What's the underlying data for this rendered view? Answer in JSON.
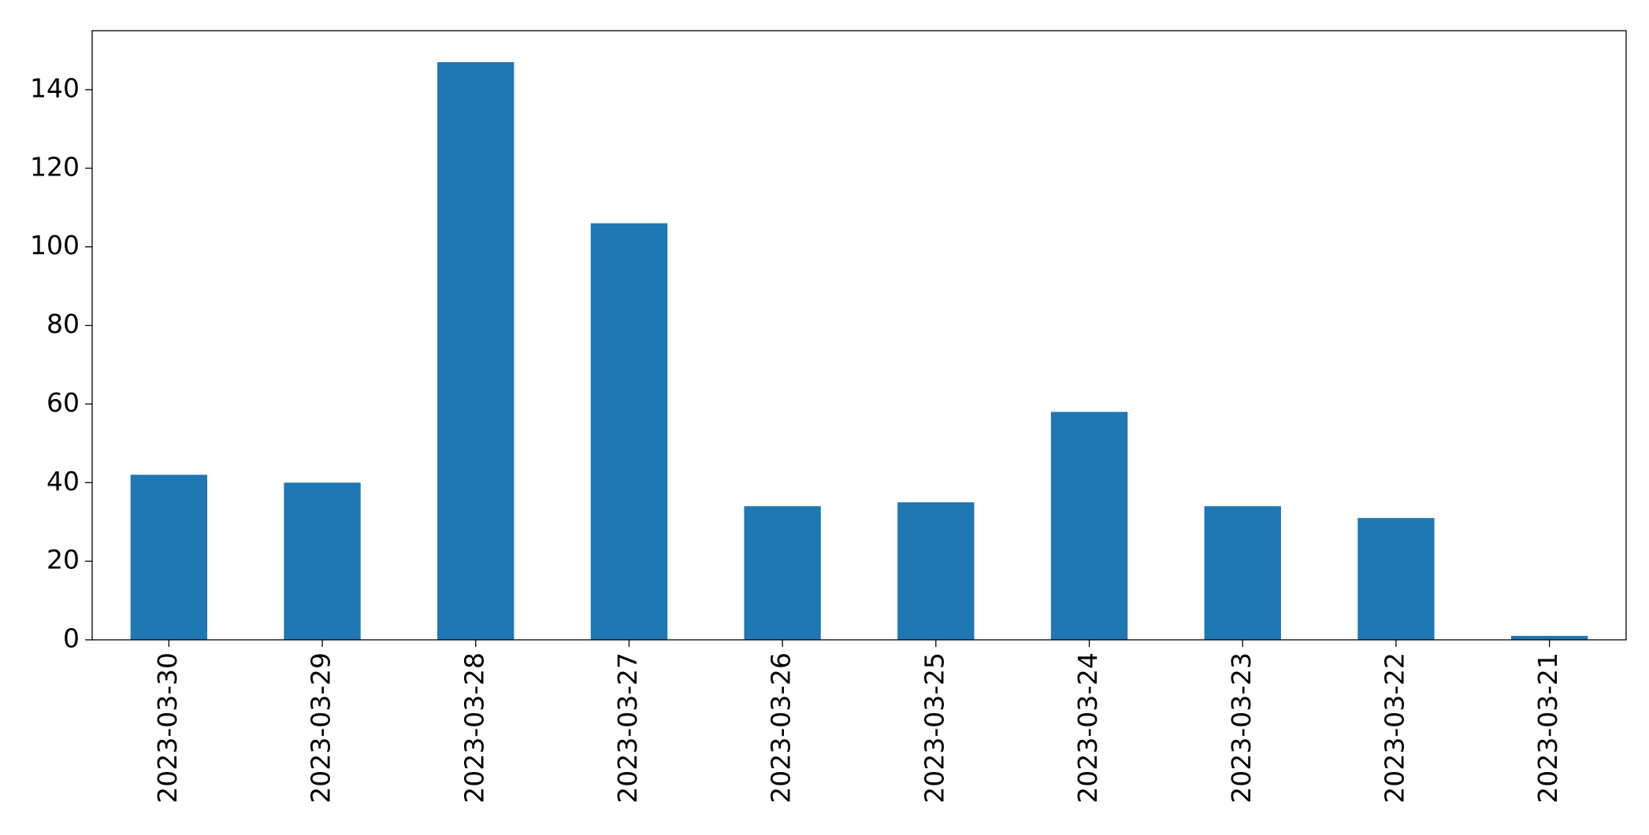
{
  "chart_data": {
    "type": "bar",
    "categories": [
      "2023-03-30",
      "2023-03-29",
      "2023-03-28",
      "2023-03-27",
      "2023-03-26",
      "2023-03-25",
      "2023-03-24",
      "2023-03-23",
      "2023-03-22",
      "2023-03-21"
    ],
    "values": [
      42,
      40,
      147,
      106,
      34,
      35,
      58,
      34,
      31,
      1
    ],
    "color": "#1f77b4",
    "ylim": [
      0,
      155
    ],
    "yticks": [
      0,
      20,
      40,
      60,
      80,
      100,
      120,
      140
    ],
    "grid": false
  }
}
